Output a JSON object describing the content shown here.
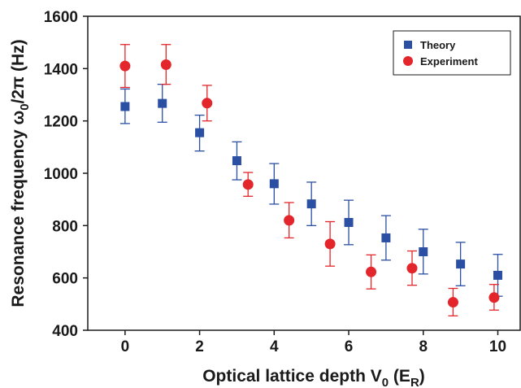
{
  "chart_data": {
    "type": "scatter",
    "xlabel": {
      "main": "Optical lattice depth V",
      "sub": "0",
      "mid": " (E",
      "sub2": "R",
      "end": ")"
    },
    "ylabel": {
      "main": "Resonance frequency ω",
      "sub": "0",
      "end": "/2π (Hz)"
    },
    "xlim": [
      -1,
      10.6
    ],
    "ylim": [
      400,
      1600
    ],
    "xticks": [
      0,
      2,
      4,
      6,
      8,
      10
    ],
    "yticks": [
      400,
      600,
      800,
      1000,
      1200,
      1400,
      1600
    ],
    "legend_position": "top-right",
    "grid": false,
    "series": [
      {
        "name": "Theory",
        "marker": "square",
        "color": "#2b4fa3",
        "points": [
          {
            "x": 0,
            "y": 1255,
            "lo": 1190,
            "hi": 1322
          },
          {
            "x": 1,
            "y": 1267,
            "lo": 1195,
            "hi": 1340
          },
          {
            "x": 2,
            "y": 1155,
            "lo": 1085,
            "hi": 1222
          },
          {
            "x": 3,
            "y": 1048,
            "lo": 975,
            "hi": 1120
          },
          {
            "x": 4,
            "y": 960,
            "lo": 882,
            "hi": 1037
          },
          {
            "x": 5,
            "y": 883,
            "lo": 800,
            "hi": 966
          },
          {
            "x": 6,
            "y": 812,
            "lo": 727,
            "hi": 897
          },
          {
            "x": 7,
            "y": 753,
            "lo": 668,
            "hi": 838
          },
          {
            "x": 8,
            "y": 700,
            "lo": 615,
            "hi": 786
          },
          {
            "x": 9,
            "y": 653,
            "lo": 570,
            "hi": 736
          },
          {
            "x": 10,
            "y": 610,
            "lo": 530,
            "hi": 690
          }
        ]
      },
      {
        "name": "Experiment",
        "marker": "circle",
        "color": "#e3262b",
        "points": [
          {
            "x": 0,
            "y": 1410,
            "lo": 1328,
            "hi": 1492
          },
          {
            "x": 1.1,
            "y": 1415,
            "lo": 1340,
            "hi": 1492
          },
          {
            "x": 2.2,
            "y": 1268,
            "lo": 1200,
            "hi": 1336
          },
          {
            "x": 3.3,
            "y": 957,
            "lo": 912,
            "hi": 1003
          },
          {
            "x": 4.4,
            "y": 820,
            "lo": 753,
            "hi": 888
          },
          {
            "x": 5.5,
            "y": 730,
            "lo": 645,
            "hi": 815
          },
          {
            "x": 6.6,
            "y": 623,
            "lo": 558,
            "hi": 688
          },
          {
            "x": 7.7,
            "y": 637,
            "lo": 572,
            "hi": 703
          },
          {
            "x": 8.8,
            "y": 507,
            "lo": 455,
            "hi": 560
          },
          {
            "x": 9.9,
            "y": 525,
            "lo": 477,
            "hi": 575
          }
        ]
      }
    ]
  }
}
